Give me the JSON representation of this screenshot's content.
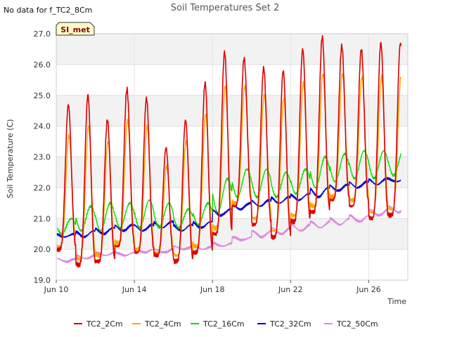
{
  "chart_data": {
    "type": "line",
    "title": "Soil Temperatures Set 2",
    "no_data_note": "No data for f_TC2_8Cm",
    "station_badge": "SI_met",
    "xlabel": "Time",
    "ylabel": "Soil Temperature (C)",
    "xlim": [
      "2024-06-10",
      "2024-06-28"
    ],
    "ylim": [
      19.0,
      27.0
    ],
    "yticks": [
      "19.0",
      "20.0",
      "21.0",
      "22.0",
      "23.0",
      "24.0",
      "25.0",
      "26.0",
      "27.0"
    ],
    "xticks": [
      {
        "date": "2024-06-10",
        "label": "Jun 10"
      },
      {
        "date": "2024-06-14",
        "label": "Jun 14"
      },
      {
        "date": "2024-06-18",
        "label": "Jun 18"
      },
      {
        "date": "2024-06-22",
        "label": "Jun 22"
      },
      {
        "date": "2024-06-26",
        "label": "Jun 26"
      }
    ],
    "grid": true,
    "legend_position": "bottom",
    "x": [
      "2024-06-10",
      "2024-06-11",
      "2024-06-12",
      "2024-06-13",
      "2024-06-14",
      "2024-06-15",
      "2024-06-16",
      "2024-06-17",
      "2024-06-18",
      "2024-06-19",
      "2024-06-20",
      "2024-06-21",
      "2024-06-22",
      "2024-06-23",
      "2024-06-24",
      "2024-06-25",
      "2024-06-26",
      "2024-06-27"
    ],
    "series": [
      {
        "name": "TC2_2Cm",
        "color": "#dd0000",
        "daily_min": [
          20.0,
          19.5,
          19.6,
          20.1,
          19.9,
          19.8,
          19.6,
          19.9,
          20.5,
          21.4,
          20.8,
          20.4,
          20.9,
          21.2,
          21.6,
          21.4,
          21.0,
          21.1
        ],
        "daily_max": [
          24.7,
          25.0,
          24.2,
          25.2,
          24.9,
          23.3,
          24.2,
          25.4,
          26.4,
          26.2,
          25.9,
          25.8,
          26.5,
          26.9,
          26.6,
          26.5,
          26.7,
          26.7
        ]
      },
      {
        "name": "TC2_4Cm",
        "color": "#ffa500",
        "daily_min": [
          20.1,
          19.7,
          19.8,
          20.2,
          20.0,
          19.9,
          19.8,
          20.1,
          20.7,
          21.5,
          21.0,
          20.6,
          21.1,
          21.4,
          21.7,
          21.6,
          21.2,
          21.3
        ],
        "daily_max": [
          23.7,
          24.0,
          23.5,
          24.2,
          24.0,
          22.7,
          23.5,
          24.4,
          25.3,
          25.3,
          25.0,
          24.9,
          25.4,
          25.7,
          25.7,
          25.6,
          25.6,
          25.6
        ]
      },
      {
        "name": "TC2_16Cm",
        "color": "#00dd00",
        "daily_min": [
          20.5,
          20.6,
          20.6,
          20.7,
          20.7,
          20.7,
          20.7,
          20.8,
          21.2,
          21.7,
          21.7,
          21.7,
          21.8,
          22.0,
          22.2,
          22.3,
          22.3,
          22.4
        ],
        "daily_max": [
          21.0,
          21.4,
          21.5,
          21.5,
          21.6,
          21.5,
          21.3,
          21.5,
          22.3,
          22.6,
          22.6,
          22.5,
          22.6,
          23.0,
          23.1,
          23.2,
          23.2,
          23.2
        ]
      },
      {
        "name": "TC2_32Cm",
        "color": "#0000cc",
        "daily_min": [
          20.4,
          20.4,
          20.5,
          20.6,
          20.6,
          20.7,
          20.6,
          20.7,
          21.1,
          21.3,
          21.4,
          21.5,
          21.6,
          21.7,
          21.9,
          22.0,
          22.1,
          22.2
        ],
        "daily_max": [
          20.5,
          20.6,
          20.7,
          20.8,
          20.8,
          20.9,
          20.8,
          20.9,
          21.3,
          21.5,
          21.6,
          21.7,
          21.8,
          22.0,
          22.1,
          22.2,
          22.3,
          22.3
        ]
      },
      {
        "name": "TC2_50Cm",
        "color": "#dd88dd",
        "daily_min": [
          19.6,
          19.7,
          19.8,
          19.8,
          19.9,
          19.9,
          20.0,
          20.0,
          20.1,
          20.3,
          20.4,
          20.5,
          20.6,
          20.7,
          20.8,
          20.9,
          21.1,
          21.2
        ],
        "daily_max": [
          19.7,
          19.8,
          19.9,
          19.9,
          20.0,
          20.0,
          20.1,
          20.1,
          20.2,
          20.4,
          20.6,
          20.7,
          20.8,
          20.9,
          21.0,
          21.1,
          21.3,
          21.4
        ]
      }
    ]
  }
}
